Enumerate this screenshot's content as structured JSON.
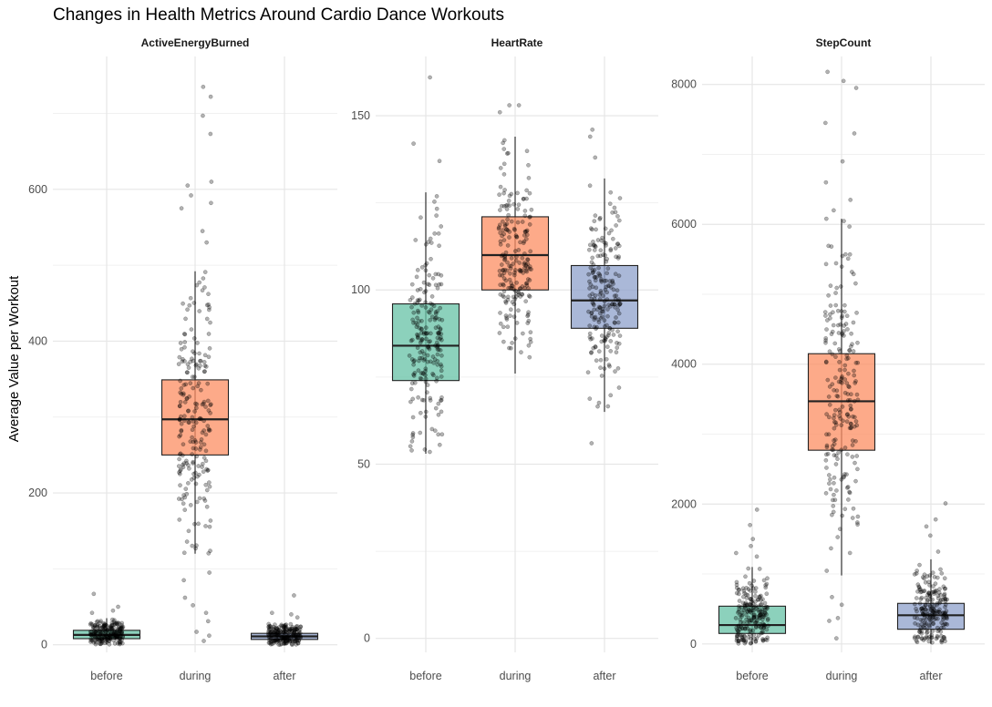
{
  "chart_data": {
    "type": "box",
    "title": "Changes in Health Metrics Around Cardio Dance Workouts",
    "ylabel": "Average Value per Workout",
    "xlabel": "",
    "categories": [
      "before",
      "during",
      "after"
    ],
    "colors": {
      "before": "#66c2a5",
      "during": "#fc8d62",
      "after": "#8da0cb"
    },
    "grid": true,
    "legend": "none",
    "facets": [
      {
        "name": "ActiveEnergyBurned",
        "ylim": [
          -10,
          775
        ],
        "yticks": [
          0,
          200,
          400,
          600
        ],
        "boxes": [
          {
            "category": "before",
            "min": 0,
            "q1": 8,
            "median": 13,
            "q3": 19,
            "max": 35,
            "jitter_center": 15,
            "jitter_sd": 9,
            "outliers": [
              42,
              45,
              50,
              67
            ]
          },
          {
            "category": "during",
            "min": 120,
            "q1": 250,
            "median": 297,
            "q3": 349,
            "max": 492,
            "jitter_center": 300,
            "jitter_sd": 85,
            "outliers": [
              5,
              12,
              17,
              31,
              42,
              52,
              62,
              85,
              95,
              530,
              545,
              575,
              582,
              592,
              605,
              610,
              673,
              697,
              722,
              735
            ]
          },
          {
            "category": "after",
            "min": 0,
            "q1": 7,
            "median": 11,
            "q3": 15,
            "max": 28,
            "jitter_center": 12,
            "jitter_sd": 8,
            "outliers": [
              36,
              40,
              42,
              65
            ]
          }
        ]
      },
      {
        "name": "HeartRate",
        "ylim": [
          -4,
          167
        ],
        "yticks": [
          0,
          50,
          100,
          150
        ],
        "boxes": [
          {
            "category": "before",
            "min": 53,
            "q1": 74,
            "median": 84,
            "q3": 96,
            "max": 128,
            "jitter_center": 85,
            "jitter_sd": 15,
            "outliers": [
              137,
              142,
              161
            ]
          },
          {
            "category": "during",
            "min": 76,
            "q1": 100,
            "median": 110,
            "q3": 121,
            "max": 144,
            "jitter_center": 110,
            "jitter_sd": 14,
            "outliers": [
              151,
              153,
              153
            ]
          },
          {
            "category": "after",
            "min": 65,
            "q1": 89,
            "median": 97,
            "q3": 107,
            "max": 132,
            "jitter_center": 98,
            "jitter_sd": 14,
            "outliers": [
              56,
              138,
              144,
              146
            ]
          }
        ]
      },
      {
        "name": "StepCount",
        "ylim": [
          -120,
          8400
        ],
        "yticks": [
          0,
          2000,
          4000,
          6000,
          8000
        ],
        "boxes": [
          {
            "category": "before",
            "min": 0,
            "q1": 150,
            "median": 270,
            "q3": 540,
            "max": 1100,
            "jitter_center": 380,
            "jitter_sd": 280,
            "outliers": [
              1250,
              1300,
              1400,
              1500,
              1700,
              1920
            ]
          },
          {
            "category": "during",
            "min": 980,
            "q1": 2770,
            "median": 3470,
            "q3": 4150,
            "max": 6080,
            "jitter_center": 3500,
            "jitter_sd": 1100,
            "outliers": [
              80,
              330,
              370,
              560,
              670,
              6200,
              6350,
              6600,
              6900,
              7300,
              7450,
              7950,
              8050,
              8180
            ]
          },
          {
            "category": "after",
            "min": 0,
            "q1": 210,
            "median": 410,
            "q3": 580,
            "max": 1210,
            "jitter_center": 450,
            "jitter_sd": 300,
            "outliers": [
              1320,
              1550,
              1680,
              1780,
              2010
            ]
          }
        ]
      }
    ]
  }
}
